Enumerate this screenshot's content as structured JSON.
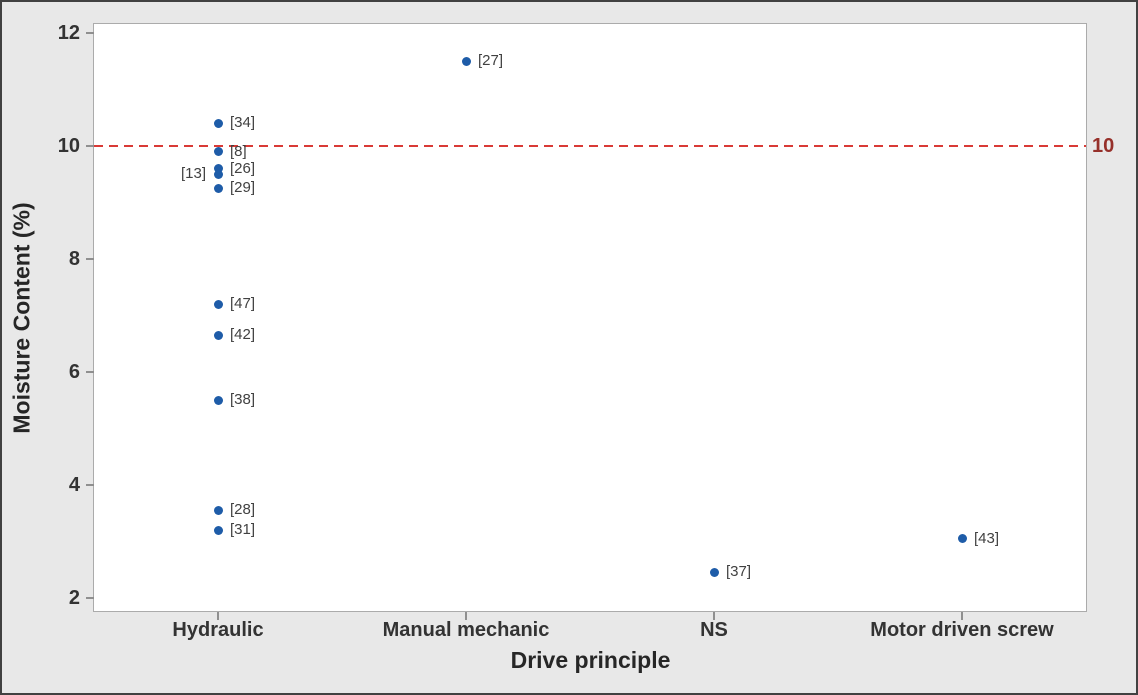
{
  "figure": {
    "background": "#E8E8E8",
    "border_color": "#414141",
    "plot_border_color": "#ABABAB",
    "tick_color": "#8F8F8F",
    "text_color": "#333333"
  },
  "chart_data": {
    "type": "scatter",
    "title": "",
    "xlabel": "Drive principle",
    "ylabel": "Moisture Content (%)",
    "categories": [
      "Hydraulic",
      "Manual mechanic",
      "NS",
      "Motor driven screw"
    ],
    "y_ticks": [
      2,
      4,
      6,
      8,
      10,
      12
    ],
    "ylim": [
      1.75,
      12.16
    ],
    "grid": false,
    "legend": "none",
    "point_color": "#1E5CA8",
    "reference_line": {
      "value": 10,
      "label": "10",
      "line_color": "#D93A36",
      "label_color": "#96302A",
      "style": "dashed"
    },
    "points": [
      {
        "category": "Hydraulic",
        "y": 10.4,
        "label": "[34]",
        "label_side": "right"
      },
      {
        "category": "Hydraulic",
        "y": 9.9,
        "label": "[8]",
        "label_side": "right"
      },
      {
        "category": "Hydraulic",
        "y": 9.6,
        "label": "[26]",
        "label_side": "right"
      },
      {
        "category": "Hydraulic",
        "y": 9.5,
        "label": "[13]",
        "label_side": "left"
      },
      {
        "category": "Hydraulic",
        "y": 9.25,
        "label": "[29]",
        "label_side": "right"
      },
      {
        "category": "Hydraulic",
        "y": 7.2,
        "label": "[47]",
        "label_side": "right"
      },
      {
        "category": "Hydraulic",
        "y": 6.65,
        "label": "[42]",
        "label_side": "right"
      },
      {
        "category": "Hydraulic",
        "y": 5.5,
        "label": "[38]",
        "label_side": "right"
      },
      {
        "category": "Hydraulic",
        "y": 3.55,
        "label": "[28]",
        "label_side": "right"
      },
      {
        "category": "Hydraulic",
        "y": 3.2,
        "label": "[31]",
        "label_side": "right"
      },
      {
        "category": "Manual mechanic",
        "y": 11.5,
        "label": "[27]",
        "label_side": "right"
      },
      {
        "category": "NS",
        "y": 2.45,
        "label": "[37]",
        "label_side": "right"
      },
      {
        "category": "Motor driven screw",
        "y": 3.05,
        "label": "[43]",
        "label_side": "right"
      }
    ]
  }
}
